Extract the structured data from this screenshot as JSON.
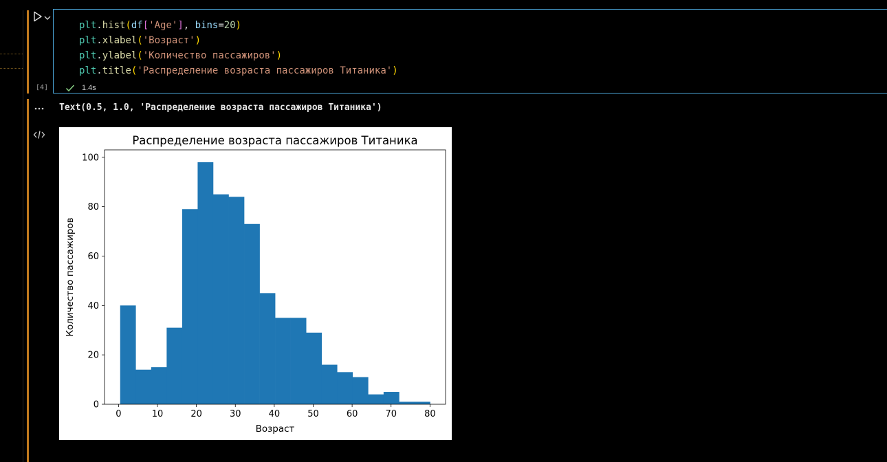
{
  "cell": {
    "execution_count": "[4]",
    "exec_time": "1.4s",
    "code_lines": [
      [
        {
          "t": "plt",
          "c": "tok-id"
        },
        {
          "t": ".",
          "c": "tok-punc"
        },
        {
          "t": "hist",
          "c": "tok-fn"
        },
        {
          "t": "(",
          "c": "tok-p1"
        },
        {
          "t": "df",
          "c": "tok-var"
        },
        {
          "t": "[",
          "c": "tok-p2"
        },
        {
          "t": "'Age'",
          "c": "tok-str"
        },
        {
          "t": "]",
          "c": "tok-p2"
        },
        {
          "t": ", ",
          "c": "tok-punc"
        },
        {
          "t": "bins",
          "c": "tok-var"
        },
        {
          "t": "=",
          "c": "tok-punc"
        },
        {
          "t": "20",
          "c": "tok-num"
        },
        {
          "t": ")",
          "c": "tok-p1"
        }
      ],
      [
        {
          "t": "plt",
          "c": "tok-id"
        },
        {
          "t": ".",
          "c": "tok-punc"
        },
        {
          "t": "xlabel",
          "c": "tok-fn"
        },
        {
          "t": "(",
          "c": "tok-p1"
        },
        {
          "t": "'Возраст'",
          "c": "tok-str"
        },
        {
          "t": ")",
          "c": "tok-p1"
        }
      ],
      [
        {
          "t": "plt",
          "c": "tok-id"
        },
        {
          "t": ".",
          "c": "tok-punc"
        },
        {
          "t": "ylabel",
          "c": "tok-fn"
        },
        {
          "t": "(",
          "c": "tok-p1"
        },
        {
          "t": "'Количество пассажиров'",
          "c": "tok-str"
        },
        {
          "t": ")",
          "c": "tok-p1"
        }
      ],
      [
        {
          "t": "plt",
          "c": "tok-id"
        },
        {
          "t": ".",
          "c": "tok-punc"
        },
        {
          "t": "title",
          "c": "tok-fn"
        },
        {
          "t": "(",
          "c": "tok-p1"
        },
        {
          "t": "'Распределение возраста пассажиров Титаника'",
          "c": "tok-str"
        },
        {
          "t": ")",
          "c": "tok-p1"
        }
      ]
    ]
  },
  "output": {
    "text": "Text(0.5, 1.0, 'Распределение возраста пассажиров Титаника')"
  },
  "icons": {
    "run": "play-icon",
    "chevron": "chevron-down-icon",
    "success": "check-icon",
    "more": "ellipsis-icon",
    "code": "code-icon"
  },
  "colors": {
    "accent_focus": "#c27a1e",
    "cell_border": "#4aa3d6",
    "success": "#89d185",
    "bar_fill": "#1f77b4"
  },
  "chart_data": {
    "type": "bar",
    "title": "Распределение возраста пассажиров Титаника",
    "xlabel": "Возраст",
    "ylabel": "Количество пассажиров",
    "bin_edges": [
      0.42,
      4.4,
      8.38,
      12.36,
      16.34,
      20.32,
      24.3,
      28.28,
      32.26,
      36.24,
      40.22,
      44.2,
      48.18,
      52.16,
      56.14,
      60.12,
      64.1,
      68.08,
      72.06,
      76.04,
      80.02
    ],
    "values": [
      40,
      14,
      15,
      31,
      79,
      98,
      85,
      84,
      73,
      45,
      35,
      35,
      29,
      16,
      13,
      11,
      4,
      5,
      1,
      1
    ],
    "xlim": [
      -3.6,
      84.0
    ],
    "ylim": [
      0,
      103
    ],
    "xticks": [
      0,
      10,
      20,
      30,
      40,
      50,
      60,
      70,
      80
    ],
    "yticks": [
      0,
      20,
      40,
      60,
      80,
      100
    ],
    "grid": false,
    "color": "#1f77b4"
  }
}
